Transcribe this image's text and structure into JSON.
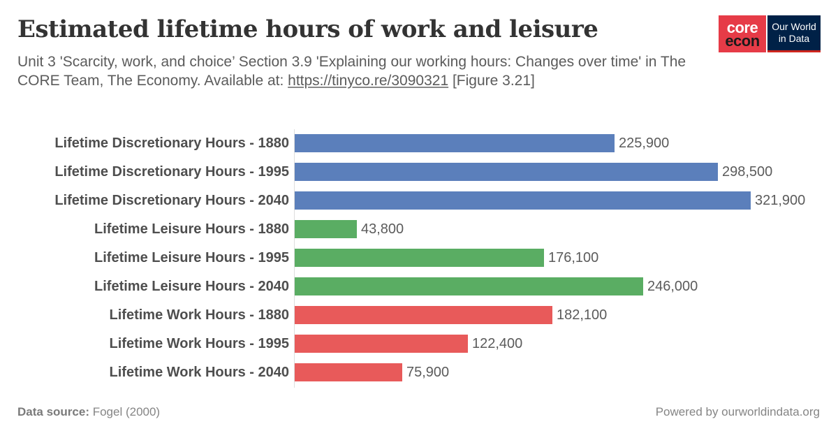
{
  "header": {
    "title": "Estimated lifetime hours of work and leisure",
    "subtitle_pre": "Unit 3 'Scarcity, work, and choice’ Section 3.9 'Explaining our working hours: Changes over time' in The CORE Team, The Economy. Available at: ",
    "subtitle_link": "https://tinyco.re/3090321",
    "subtitle_post": " [Figure 3.21]"
  },
  "logos": {
    "core_line1": "core",
    "core_line2": "econ",
    "owid_line1": "Our World",
    "owid_line2": "in Data"
  },
  "footer": {
    "source_label": "Data source:",
    "source_value": " Fogel (2000)",
    "powered_by": "Powered by ourworldindata.org"
  },
  "colors": {
    "discretionary": "#5b7fbb",
    "leisure": "#5aad63",
    "work": "#e85a5a"
  },
  "chart_data": {
    "type": "bar",
    "orientation": "horizontal",
    "title": "Estimated lifetime hours of work and leisure",
    "xlabel": "",
    "ylabel": "",
    "xlim": [
      0,
      321900
    ],
    "grid": false,
    "legend": "none",
    "categories": [
      "Lifetime Discretionary Hours - 1880",
      "Lifetime Discretionary Hours - 1995",
      "Lifetime Discretionary Hours - 2040",
      "Lifetime Leisure Hours - 1880",
      "Lifetime Leisure Hours - 1995",
      "Lifetime Leisure Hours - 2040",
      "Lifetime Work Hours - 1880",
      "Lifetime Work Hours - 1995",
      "Lifetime Work Hours - 2040"
    ],
    "values": [
      225900,
      298500,
      321900,
      43800,
      176100,
      246000,
      182100,
      122400,
      75900
    ],
    "value_labels": [
      "225,900",
      "298,500",
      "321,900",
      "43,800",
      "176,100",
      "246,000",
      "182,100",
      "122,400",
      "75,900"
    ],
    "groups": [
      "discretionary",
      "discretionary",
      "discretionary",
      "leisure",
      "leisure",
      "leisure",
      "work",
      "work",
      "work"
    ]
  }
}
